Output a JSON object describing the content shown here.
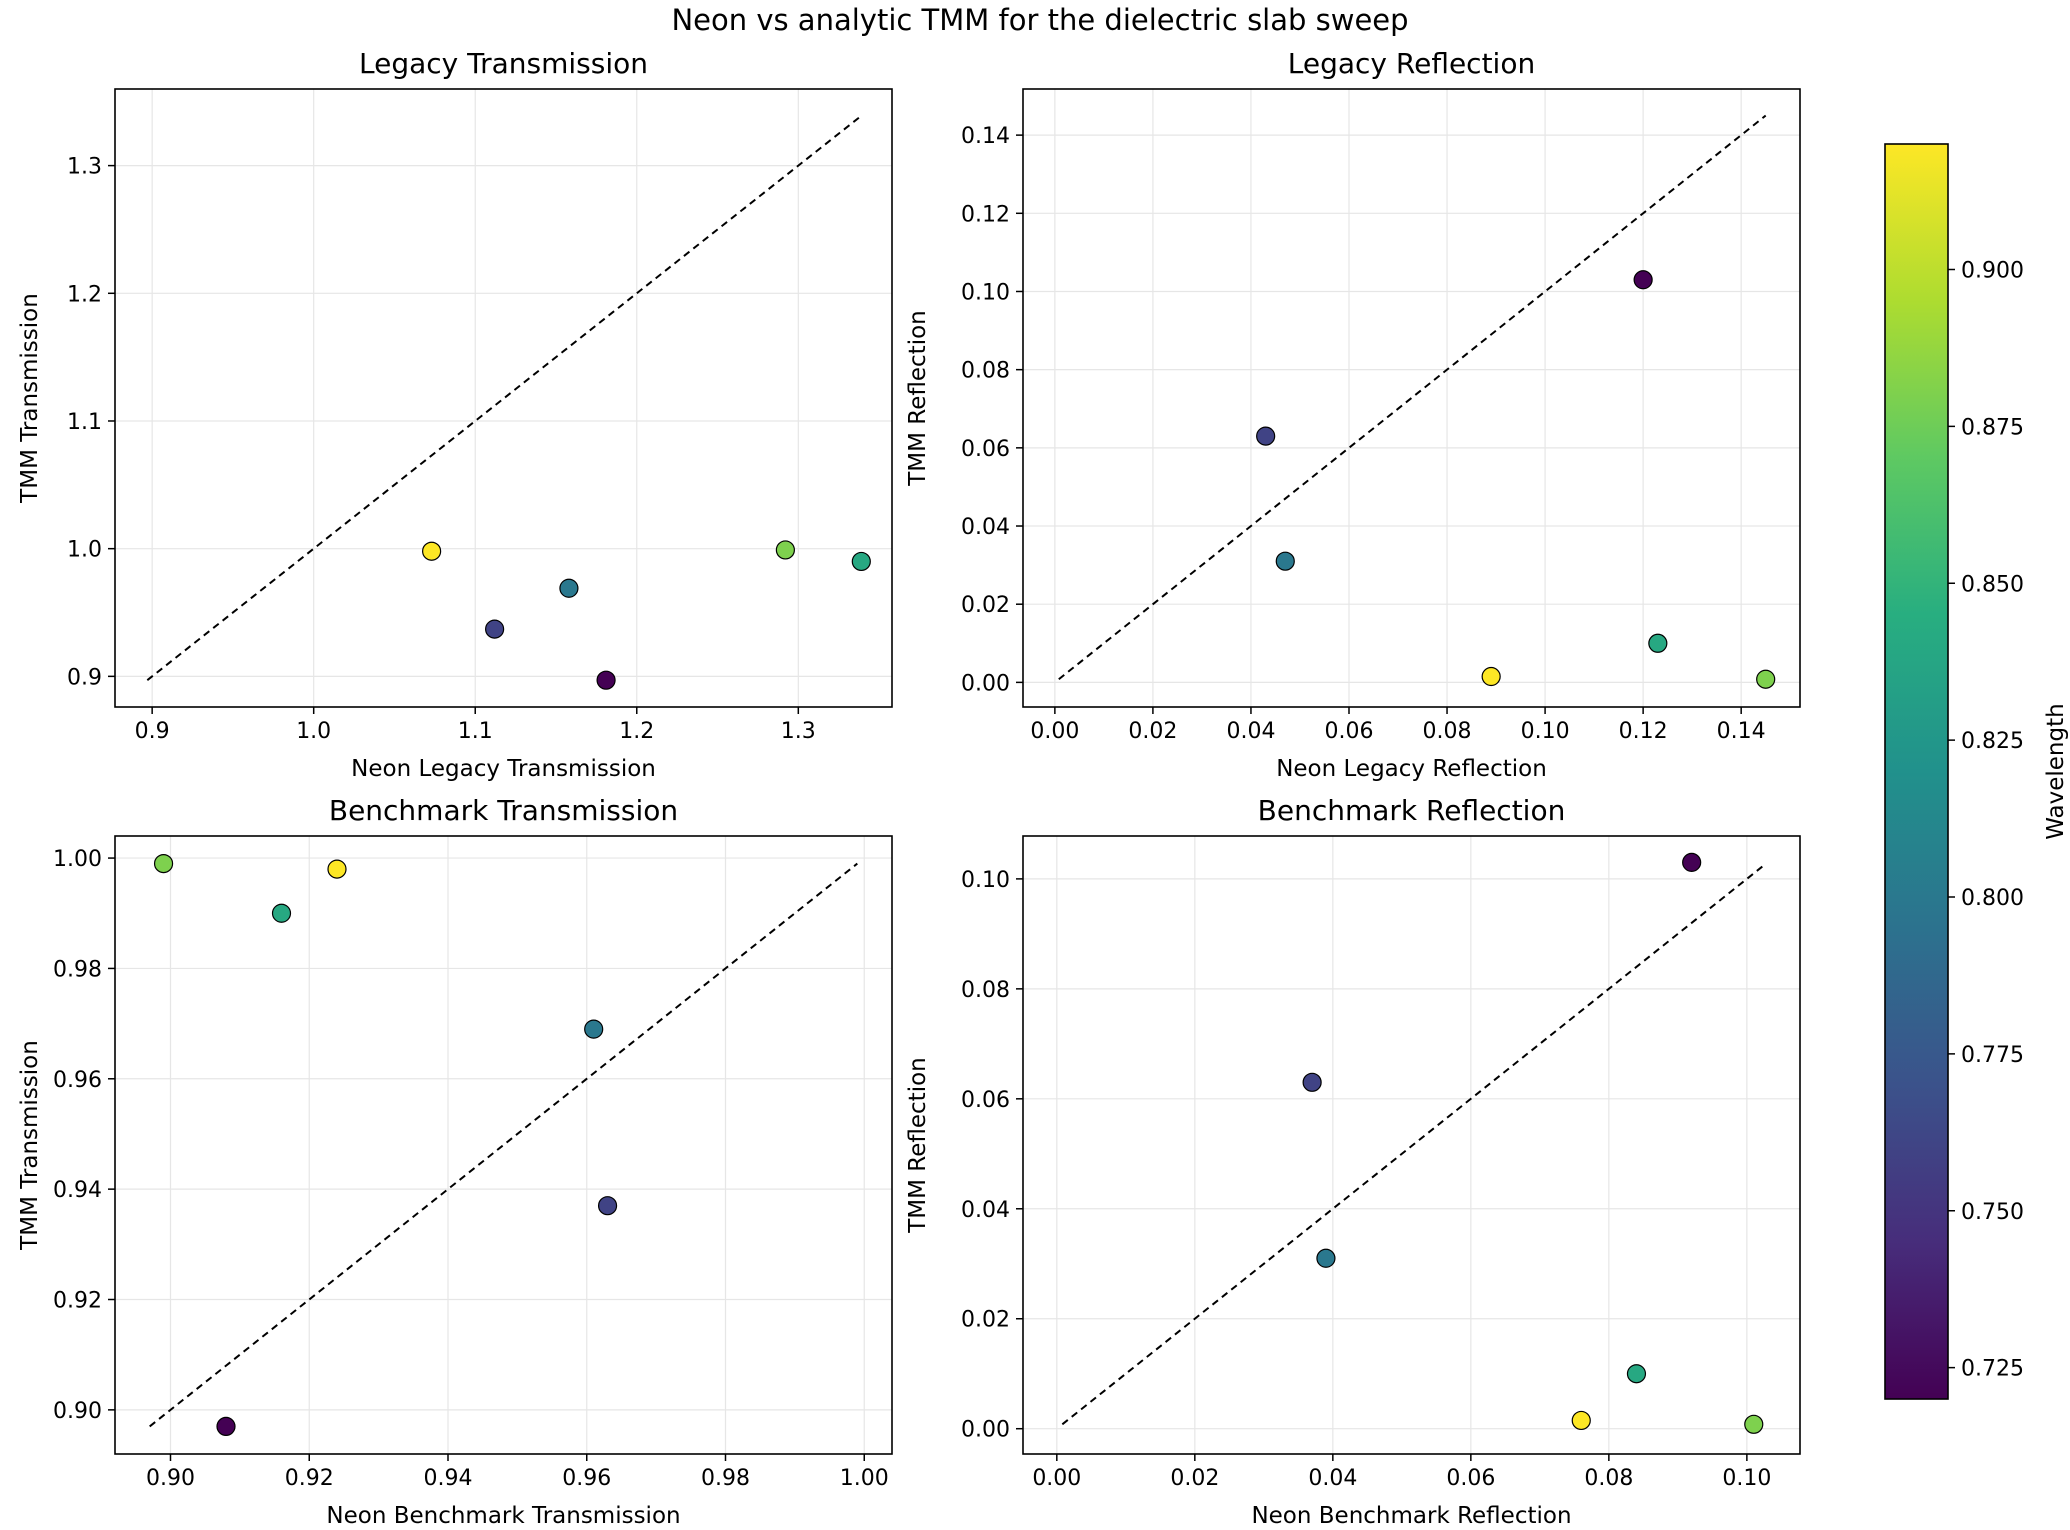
{
  "suptitle": "Neon vs analytic TMM for the dielectric slab sweep",
  "colorbar": {
    "label": "Wavelength",
    "range": [
      0.72,
      0.92
    ],
    "ticks": [
      0.725,
      0.75,
      0.775,
      0.8,
      0.825,
      0.85,
      0.875,
      0.9
    ],
    "tick_labels": [
      "0.725",
      "0.750",
      "0.775",
      "0.800",
      "0.825",
      "0.850",
      "0.875",
      "0.900"
    ],
    "colormap": "viridis"
  },
  "chart_data": [
    {
      "type": "scatter",
      "title": "Legacy Transmission",
      "xlabel": "Neon Legacy Transmission",
      "ylabel": "TMM Transmission",
      "xlim": [
        0.877,
        1.358
      ],
      "ylim": [
        0.876,
        1.36
      ],
      "xticks": [
        0.9,
        1.0,
        1.1,
        1.2,
        1.3
      ],
      "xtick_labels": [
        "0.9",
        "1.0",
        "1.1",
        "1.2",
        "1.3"
      ],
      "yticks": [
        0.9,
        1.0,
        1.1,
        1.2,
        1.3
      ],
      "ytick_labels": [
        "0.9",
        "1.0",
        "1.1",
        "1.2",
        "1.3"
      ],
      "grid": true,
      "reference_line": [
        [
          0.897,
          0.897
        ],
        [
          1.339,
          1.339
        ]
      ],
      "points": [
        {
          "x": 1.181,
          "y": 0.897,
          "wavelength": 0.72
        },
        {
          "x": 1.112,
          "y": 0.937,
          "wavelength": 0.76
        },
        {
          "x": 1.158,
          "y": 0.969,
          "wavelength": 0.8
        },
        {
          "x": 1.339,
          "y": 0.99,
          "wavelength": 0.84
        },
        {
          "x": 1.292,
          "y": 0.999,
          "wavelength": 0.88
        },
        {
          "x": 1.073,
          "y": 0.998,
          "wavelength": 0.92
        }
      ]
    },
    {
      "type": "scatter",
      "title": "Legacy Reflection",
      "xlabel": "Neon Legacy Reflection",
      "ylabel": "TMM Reflection",
      "xlim": [
        -0.0065,
        0.152
      ],
      "ylim": [
        -0.0063,
        0.1518
      ],
      "xticks": [
        0.0,
        0.02,
        0.04,
        0.06,
        0.08,
        0.1,
        0.12,
        0.14
      ],
      "xtick_labels": [
        "0.00",
        "0.02",
        "0.04",
        "0.06",
        "0.08",
        "0.10",
        "0.12",
        "0.14"
      ],
      "yticks": [
        0.0,
        0.02,
        0.04,
        0.06,
        0.08,
        0.1,
        0.12,
        0.14
      ],
      "ytick_labels": [
        "0.00",
        "0.02",
        "0.04",
        "0.06",
        "0.08",
        "0.10",
        "0.12",
        "0.14"
      ],
      "grid": true,
      "reference_line": [
        [
          0.0008,
          0.0008
        ],
        [
          0.145,
          0.145
        ]
      ],
      "points": [
        {
          "x": 0.12,
          "y": 0.103,
          "wavelength": 0.72
        },
        {
          "x": 0.043,
          "y": 0.063,
          "wavelength": 0.76
        },
        {
          "x": 0.047,
          "y": 0.031,
          "wavelength": 0.8
        },
        {
          "x": 0.123,
          "y": 0.01,
          "wavelength": 0.84
        },
        {
          "x": 0.145,
          "y": 0.0008,
          "wavelength": 0.88
        },
        {
          "x": 0.089,
          "y": 0.0015,
          "wavelength": 0.92
        }
      ]
    },
    {
      "type": "scatter",
      "title": "Benchmark Transmission",
      "xlabel": "Neon Benchmark Transmission",
      "ylabel": "TMM Transmission",
      "xlim": [
        0.892,
        1.004
      ],
      "ylim": [
        0.892,
        1.004
      ],
      "xticks": [
        0.9,
        0.92,
        0.94,
        0.96,
        0.98,
        1.0
      ],
      "xtick_labels": [
        "0.90",
        "0.92",
        "0.94",
        "0.96",
        "0.98",
        "1.00"
      ],
      "yticks": [
        0.9,
        0.92,
        0.94,
        0.96,
        0.98,
        1.0
      ],
      "ytick_labels": [
        "0.90",
        "0.92",
        "0.94",
        "0.96",
        "0.98",
        "1.00"
      ],
      "grid": true,
      "reference_line": [
        [
          0.897,
          0.897
        ],
        [
          0.999,
          0.999
        ]
      ],
      "points": [
        {
          "x": 0.908,
          "y": 0.897,
          "wavelength": 0.72
        },
        {
          "x": 0.963,
          "y": 0.937,
          "wavelength": 0.76
        },
        {
          "x": 0.961,
          "y": 0.969,
          "wavelength": 0.8
        },
        {
          "x": 0.916,
          "y": 0.99,
          "wavelength": 0.84
        },
        {
          "x": 0.899,
          "y": 0.999,
          "wavelength": 0.88
        },
        {
          "x": 0.924,
          "y": 0.998,
          "wavelength": 0.92
        }
      ]
    },
    {
      "type": "scatter",
      "title": "Benchmark Reflection",
      "xlabel": "Neon Benchmark Reflection",
      "ylabel": "TMM Reflection",
      "xlim": [
        -0.0049,
        0.1077
      ],
      "ylim": [
        -0.0046,
        0.1078
      ],
      "xticks": [
        0.0,
        0.02,
        0.04,
        0.06,
        0.08,
        0.1
      ],
      "xtick_labels": [
        "0.00",
        "0.02",
        "0.04",
        "0.06",
        "0.08",
        "0.10"
      ],
      "yticks": [
        0.0,
        0.02,
        0.04,
        0.06,
        0.08,
        0.1
      ],
      "ytick_labels": [
        "0.00",
        "0.02",
        "0.04",
        "0.06",
        "0.08",
        "0.10"
      ],
      "grid": true,
      "reference_line": [
        [
          0.0008,
          0.0008
        ],
        [
          0.1027,
          0.1027
        ]
      ],
      "points": [
        {
          "x": 0.092,
          "y": 0.103,
          "wavelength": 0.72
        },
        {
          "x": 0.037,
          "y": 0.063,
          "wavelength": 0.76
        },
        {
          "x": 0.039,
          "y": 0.031,
          "wavelength": 0.8
        },
        {
          "x": 0.084,
          "y": 0.01,
          "wavelength": 0.84
        },
        {
          "x": 0.101,
          "y": 0.0008,
          "wavelength": 0.88
        },
        {
          "x": 0.076,
          "y": 0.0015,
          "wavelength": 0.92
        }
      ]
    }
  ]
}
